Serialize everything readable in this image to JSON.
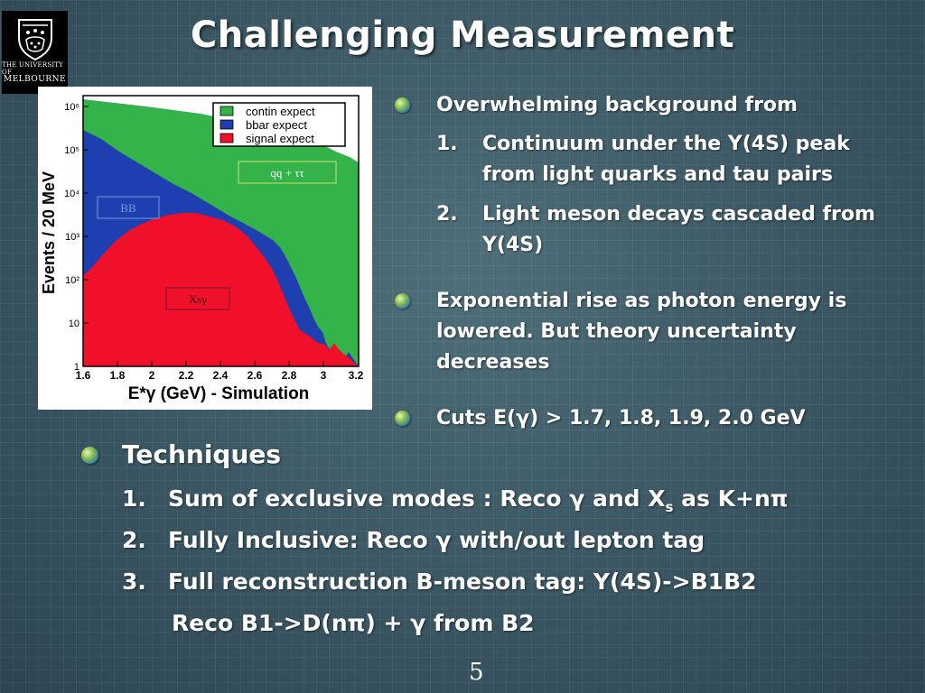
{
  "logo": {
    "line1": "THE UNIVERSITY OF",
    "line2": "MELBOURNE"
  },
  "slide": {
    "title": "Challenging Measurement",
    "page_number": "5"
  },
  "plot": {
    "ylabel": "Events / 20 MeV",
    "xlabel": "E*γ (GeV) - Simulation",
    "y_ticks": [
      "10⁶",
      "10⁵",
      "10⁴",
      "10³",
      "10²",
      "10",
      "1"
    ],
    "x_ticks": [
      "1.6",
      "1.8",
      "2",
      "2.2",
      "2.4",
      "2.6",
      "2.8",
      "3",
      "3.2"
    ],
    "legend": [
      "contin expect",
      "bbar expect",
      "signal expect"
    ],
    "legend_colors": [
      "#34b34a",
      "#1d3fb0",
      "#f0102a"
    ],
    "label_qq": "qq + ττ",
    "label_bb": "BB",
    "label_xs": "Xsγ"
  },
  "right_bullets": [
    {
      "text": "Overwhelming background from",
      "items": [
        {
          "n": "1.",
          "lines": [
            "Continuum under the Y(4S) peak",
            "from light quarks and tau pairs"
          ]
        },
        {
          "n": "2.",
          "lines": [
            "Light meson decays cascaded from",
            "Y(4S)"
          ]
        }
      ]
    },
    {
      "lines": [
        "Exponential rise as photon energy is",
        "lowered. But theory uncertainty",
        "decreases"
      ]
    },
    {
      "lines": [
        "Cuts E(γ) > 1.7, 1.8, 1.9, 2.0 GeV"
      ]
    }
  ],
  "techniques": {
    "heading": "Techniques",
    "items": [
      {
        "n": "1.",
        "pre": "Sum of exclusive modes : Reco γ and X",
        "sub": "s",
        "post": " as K+nπ"
      },
      {
        "n": "2.",
        "text": "Fully Inclusive: Reco γ with/out lepton tag"
      },
      {
        "n": "3.",
        "text": "Full reconstruction B-meson tag: Y(4S)->B1B2"
      }
    ],
    "continuation": "Reco B1->D(nπ) + γ from B2"
  }
}
